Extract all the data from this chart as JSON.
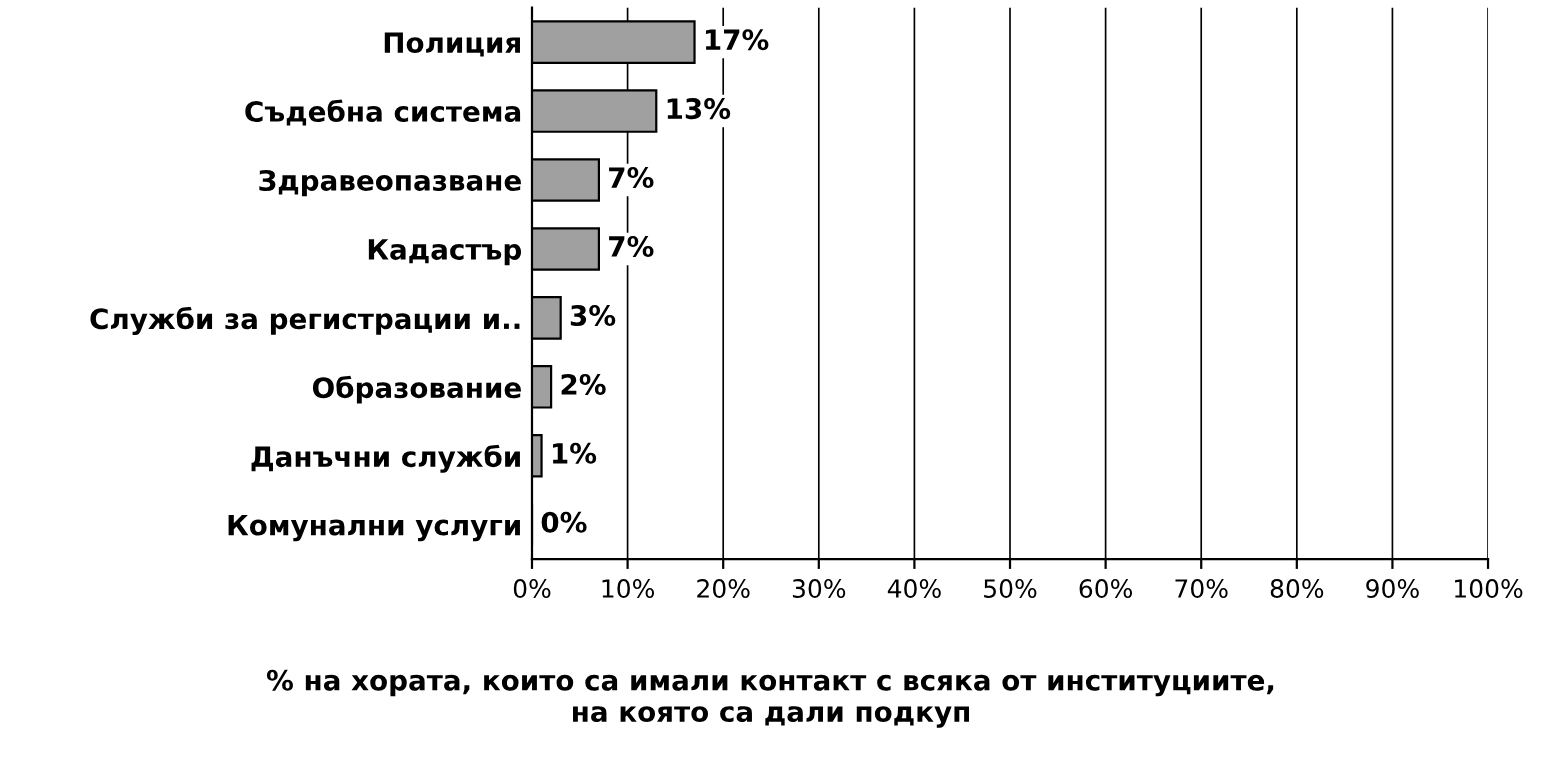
{
  "chart_data": {
    "type": "bar",
    "orientation": "horizontal",
    "categories": [
      "Полиция",
      "Съдебна система",
      "Здравеопазване",
      "Кадастър",
      "Служби за регистрации и..",
      "Образование",
      "Данъчни служби",
      "Комунални услуги"
    ],
    "values": [
      17,
      13,
      7,
      7,
      3,
      2,
      1,
      0
    ],
    "value_labels": [
      "17%",
      "13%",
      "7%",
      "7%",
      "3%",
      "2%",
      "1%",
      "0%"
    ],
    "color": "#a0a0a0",
    "xlim": [
      0,
      100
    ],
    "xticks": [
      {
        "value": 0,
        "label": "0%"
      },
      {
        "value": 10,
        "label": "10%"
      },
      {
        "value": 20,
        "label": "20%"
      },
      {
        "value": 30,
        "label": "30%"
      },
      {
        "value": 40,
        "label": "40%"
      },
      {
        "value": 50,
        "label": "50%"
      },
      {
        "value": 60,
        "label": "60%"
      },
      {
        "value": 70,
        "label": "70%"
      },
      {
        "value": 80,
        "label": "80%"
      },
      {
        "value": 90,
        "label": "90%"
      },
      {
        "value": 100,
        "label": "100%"
      }
    ],
    "xlabel": "% на хората, които са имали контакт с всяка от институциите,\nна която са дали подкуп",
    "grid": "x"
  }
}
